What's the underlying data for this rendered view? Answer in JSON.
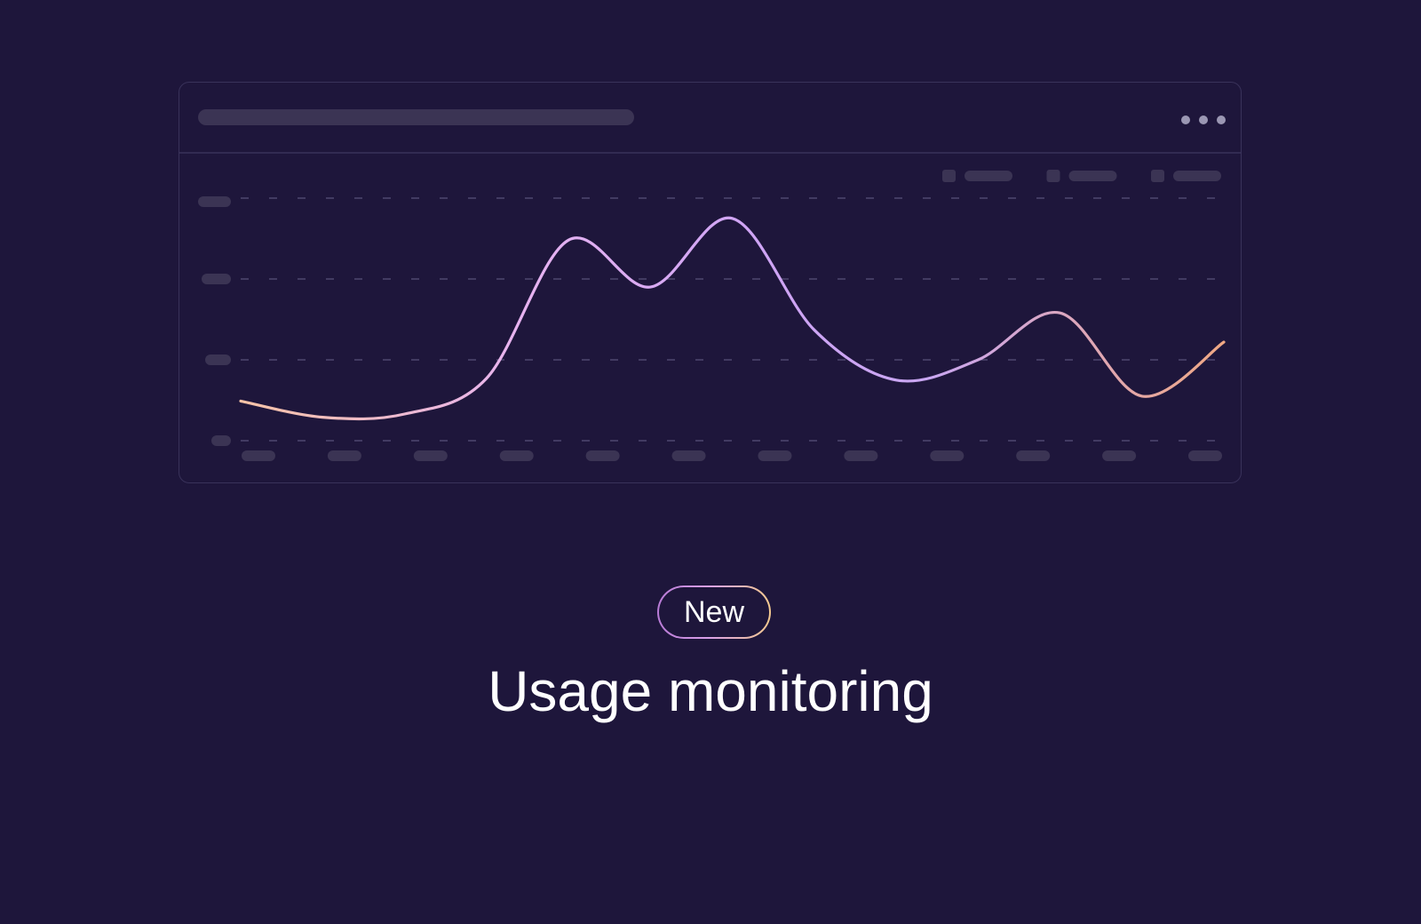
{
  "colors": {
    "background": "#1e163b",
    "card_border": "#39325a",
    "placeholder": "#3b3454",
    "grid": "#58527a",
    "menu_dots": "#9b97b3",
    "line_gradient": [
      "#f6c3a6",
      "#e7b3f0",
      "#cfa4f5",
      "#c9a6f2",
      "#f0a884"
    ],
    "badge_gradient": [
      "#b87ad6",
      "#f3c98f"
    ]
  },
  "card": {
    "menu_icon": "more-horizontal-icon"
  },
  "chart_data": {
    "type": "line",
    "title": "",
    "xlabel": "",
    "ylabel": "",
    "x_tick_count": 12,
    "y_tick_count": 4,
    "legend_entry_count": 3,
    "legend_position": "top-right",
    "grid": true,
    "grid_style": "dashed",
    "ylim": [
      0,
      3
    ],
    "series": [
      {
        "values": [
          0.49,
          0.29,
          0.33,
          0.77,
          2.48,
          1.9,
          2.75,
          1.37,
          0.75,
          1.0,
          1.58,
          0.55,
          1.22
        ]
      }
    ]
  },
  "badge": {
    "label": "New"
  },
  "headline": "Usage monitoring"
}
